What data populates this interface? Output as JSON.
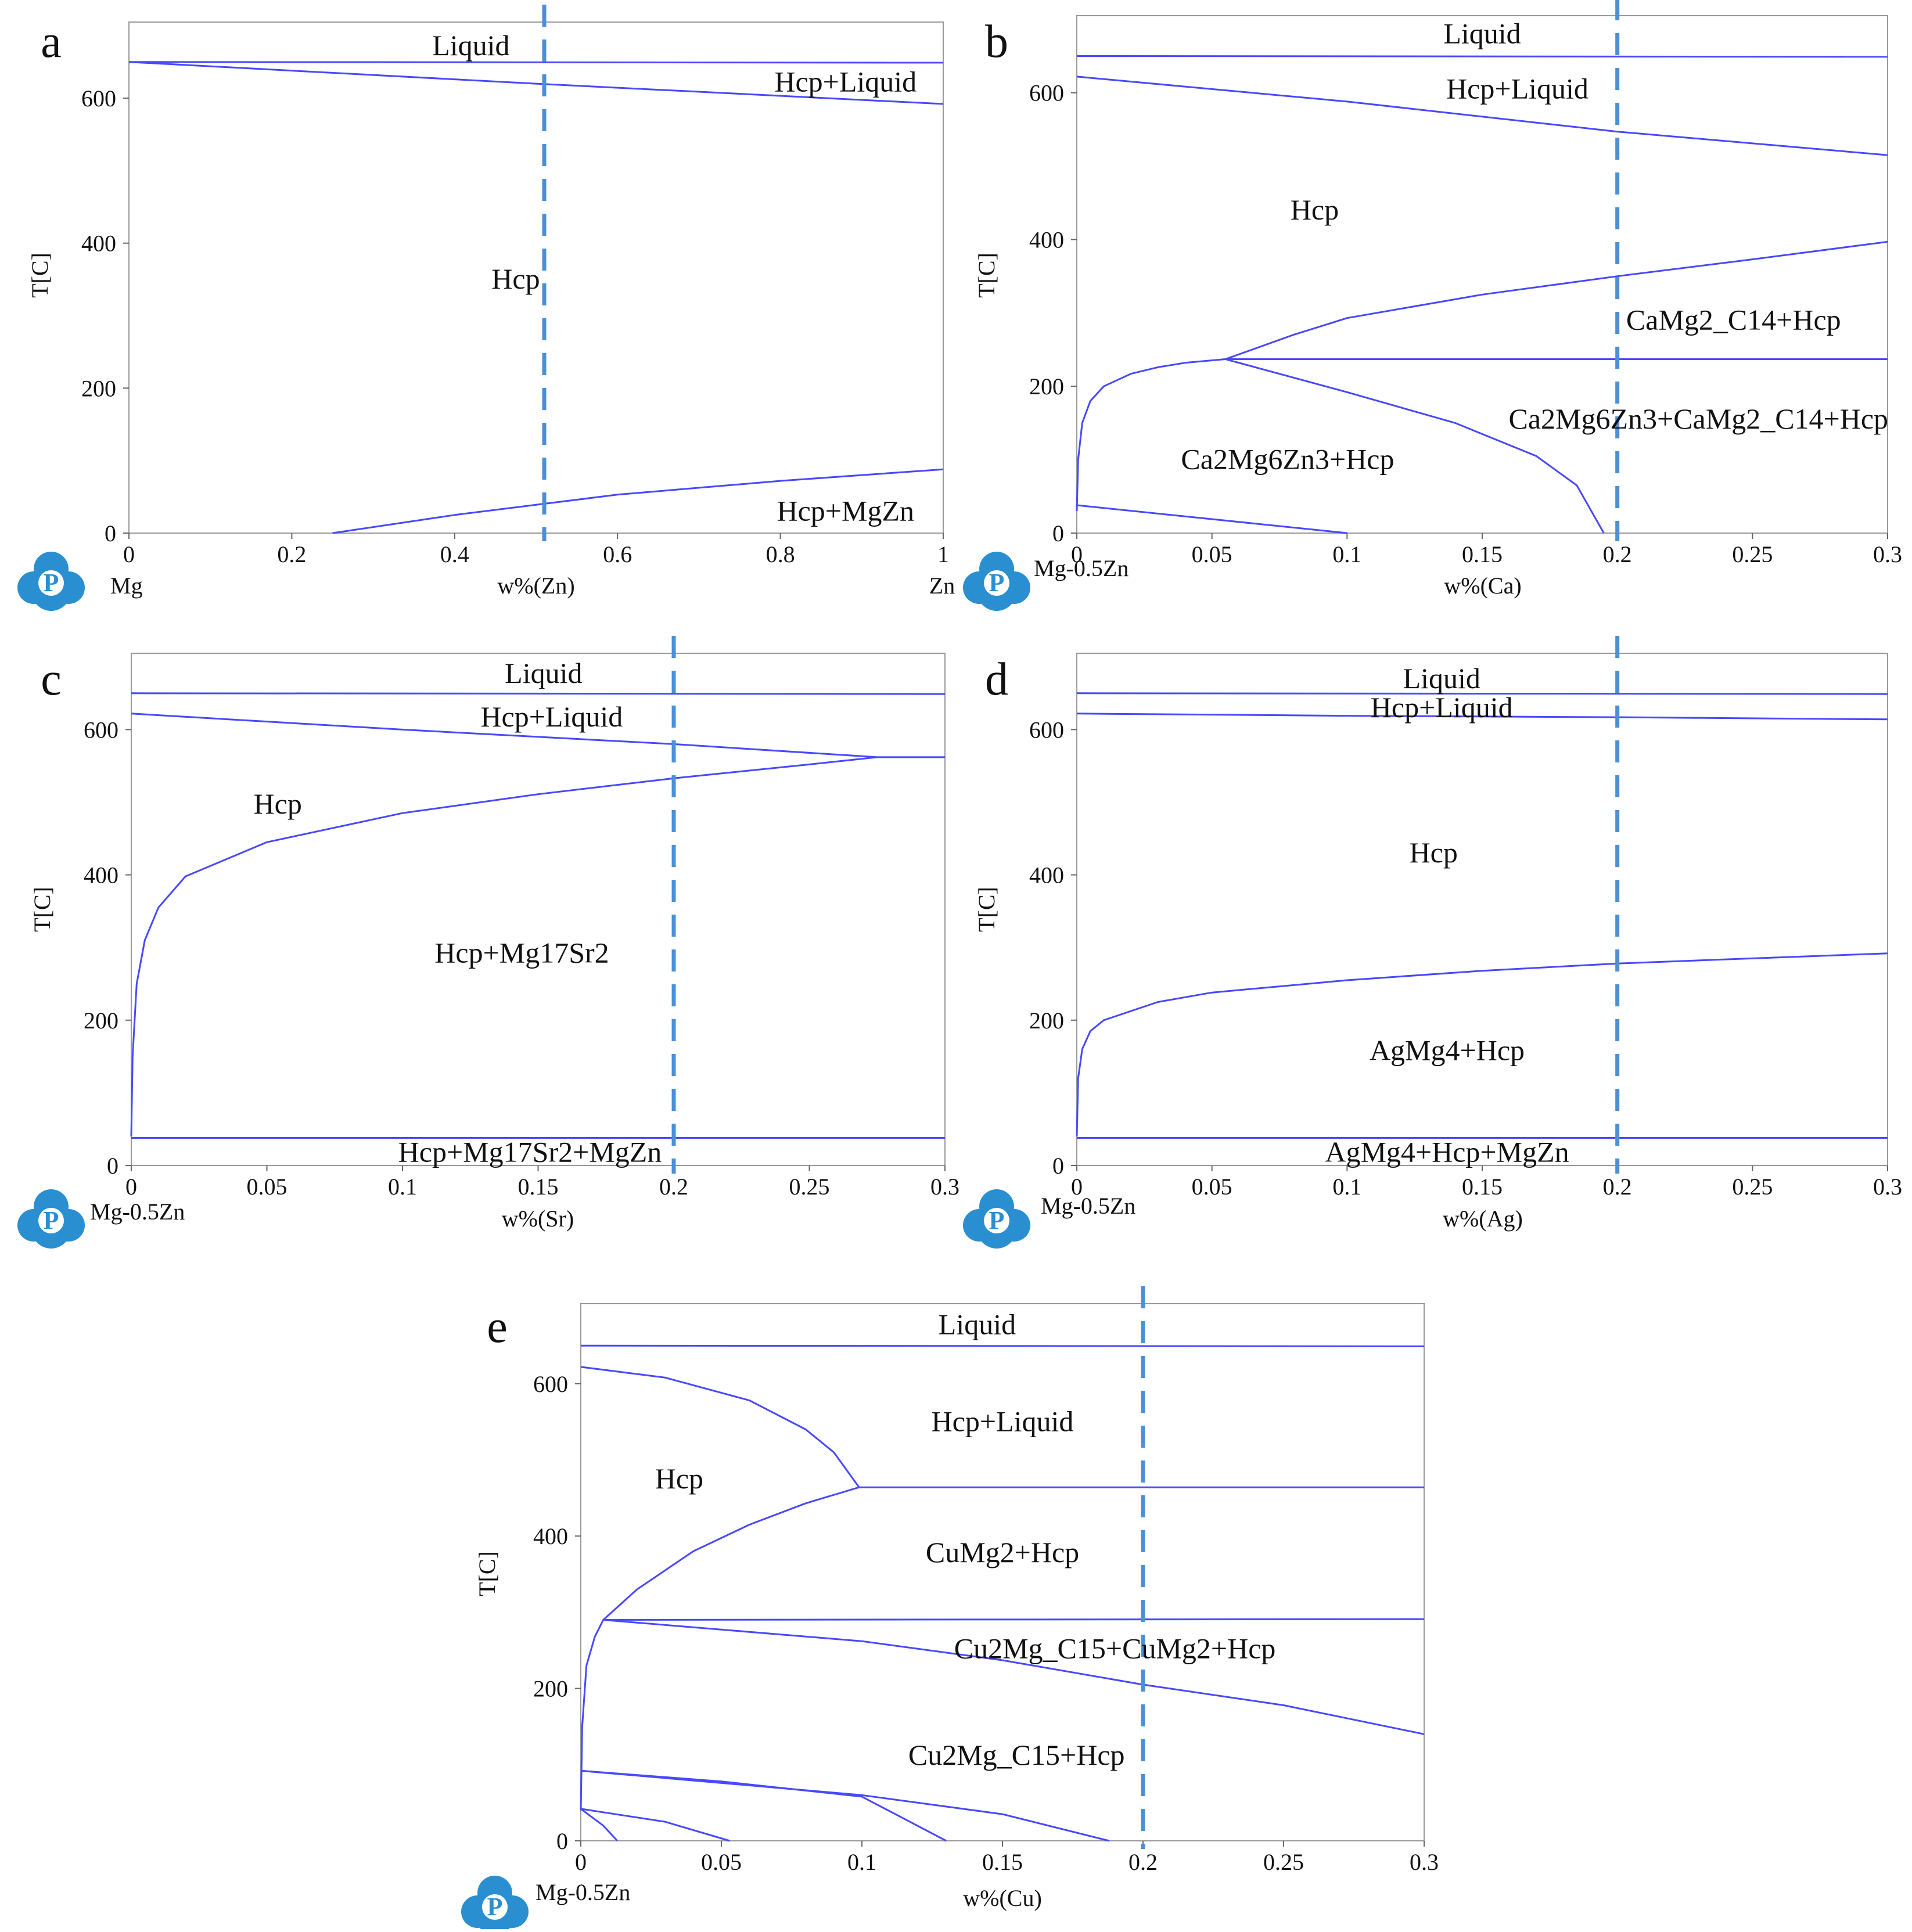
{
  "chart_data": [
    {
      "id": "a",
      "type": "line",
      "panel_label": "a",
      "xlabel": "w%(Zn)",
      "ylabel": "T[C]",
      "xlim": [
        0,
        1
      ],
      "ylim": [
        0,
        705
      ],
      "x_ticks": [
        "0",
        "0.2",
        "0.4",
        "0.6",
        "0.8",
        "1"
      ],
      "x_tick_values": [
        0,
        0.2,
        0.4,
        0.6,
        0.8,
        1
      ],
      "y_ticks": [
        "0",
        "200",
        "400",
        "600"
      ],
      "y_tick_values": [
        0,
        200,
        400,
        600
      ],
      "left_component": "Mg",
      "right_component": "Zn",
      "dashed_x": 0.51,
      "lines": [
        {
          "points": [
            [
              0,
              650
            ],
            [
              1,
              649
            ]
          ]
        },
        {
          "points": [
            [
              0,
              650
            ],
            [
              0.5,
              620
            ],
            [
              1,
              592
            ]
          ]
        },
        {
          "points": [
            [
              0.25,
              0
            ],
            [
              0.4,
              25
            ],
            [
              0.6,
              53
            ],
            [
              0.8,
              72
            ],
            [
              1,
              88
            ]
          ]
        }
      ],
      "labels": [
        {
          "text": "Liquid",
          "x": 0.42,
          "y": 672
        },
        {
          "text": "Hcp+Liquid",
          "x": 0.88,
          "y": 622
        },
        {
          "text": "Hcp",
          "x": 0.475,
          "y": 350
        },
        {
          "text": "Hcp+MgZn",
          "x": 0.88,
          "y": 30
        }
      ]
    },
    {
      "id": "b",
      "type": "line",
      "panel_label": "b",
      "xlabel": "w%(Ca)",
      "ylabel": "T[C]",
      "xlim": [
        0,
        0.3
      ],
      "ylim": [
        0,
        705
      ],
      "x_ticks": [
        "0",
        "0.05",
        "0.1",
        "0.15",
        "0.2",
        "0.25",
        "0.3"
      ],
      "x_tick_values": [
        0,
        0.05,
        0.1,
        0.15,
        0.2,
        0.25,
        0.3
      ],
      "y_ticks": [
        "0",
        "200",
        "400",
        "600"
      ],
      "y_tick_values": [
        0,
        200,
        400,
        600
      ],
      "left_component": "Mg-0.5Zn",
      "dashed_x": 0.2,
      "lines": [
        {
          "points": [
            [
              0,
              650
            ],
            [
              0.3,
              649
            ]
          ]
        },
        {
          "points": [
            [
              0,
              622
            ],
            [
              0.1,
              588
            ],
            [
              0.2,
              547
            ],
            [
              0.3,
              515
            ]
          ]
        },
        {
          "points": [
            [
              0,
              30
            ],
            [
              0.0005,
              100
            ],
            [
              0.002,
              150
            ],
            [
              0.005,
              180
            ],
            [
              0.01,
              200
            ],
            [
              0.02,
              217
            ],
            [
              0.03,
              226
            ],
            [
              0.04,
              232
            ],
            [
              0.055,
              237
            ],
            [
              0.08,
              270
            ],
            [
              0.1,
              293
            ],
            [
              0.15,
              325
            ],
            [
              0.2,
              350
            ],
            [
              0.25,
              373
            ],
            [
              0.3,
              397
            ]
          ]
        },
        {
          "points": [
            [
              0.055,
              237
            ],
            [
              0.3,
              237
            ]
          ]
        },
        {
          "points": [
            [
              0.055,
              237
            ],
            [
              0.1,
              192
            ],
            [
              0.14,
              150
            ],
            [
              0.17,
              105
            ],
            [
              0.185,
              65
            ],
            [
              0.195,
              0
            ]
          ]
        },
        {
          "points": [
            [
              0,
              38
            ],
            [
              0.1,
              0
            ]
          ]
        }
      ],
      "labels": [
        {
          "text": "Liquid",
          "x": 0.15,
          "y": 680
        },
        {
          "text": "Hcp+Liquid",
          "x": 0.163,
          "y": 605
        },
        {
          "text": "Hcp",
          "x": 0.088,
          "y": 440
        },
        {
          "text": "CaMg2_C14+Hcp",
          "x": 0.243,
          "y": 290
        },
        {
          "text": "Ca2Mg6Zn3+CaMg2_C14+Hcp",
          "x": 0.23,
          "y": 155
        },
        {
          "text": "Ca2Mg6Zn3+Hcp",
          "x": 0.078,
          "y": 100
        }
      ]
    },
    {
      "id": "c",
      "type": "line",
      "panel_label": "c",
      "xlabel": "w%(Sr)",
      "ylabel": "T[C]",
      "xlim": [
        0,
        0.3
      ],
      "ylim": [
        0,
        705
      ],
      "x_ticks": [
        "0",
        "0.05",
        "0.1",
        "0.15",
        "0.2",
        "0.25",
        "0.3"
      ],
      "x_tick_values": [
        0,
        0.05,
        0.1,
        0.15,
        0.2,
        0.25,
        0.3
      ],
      "y_ticks": [
        "0",
        "200",
        "400",
        "600"
      ],
      "y_tick_values": [
        0,
        200,
        400,
        600
      ],
      "left_component": "Mg-0.5Zn",
      "dashed_x": 0.2,
      "lines": [
        {
          "points": [
            [
              0,
              650
            ],
            [
              0.3,
              649
            ]
          ]
        },
        {
          "points": [
            [
              0,
              622
            ],
            [
              0.1,
              600
            ],
            [
              0.2,
              580
            ],
            [
              0.275,
              562
            ]
          ]
        },
        {
          "points": [
            [
              0.275,
              562
            ],
            [
              0.3,
              562
            ]
          ]
        },
        {
          "points": [
            [
              0,
              40
            ],
            [
              0.0005,
              150
            ],
            [
              0.002,
              250
            ],
            [
              0.005,
              310
            ],
            [
              0.01,
              355
            ],
            [
              0.02,
              398
            ],
            [
              0.05,
              445
            ],
            [
              0.1,
              485
            ],
            [
              0.15,
              511
            ],
            [
              0.2,
              533
            ],
            [
              0.25,
              552
            ],
            [
              0.275,
              562
            ]
          ]
        },
        {
          "points": [
            [
              0,
              38
            ],
            [
              0.3,
              38
            ]
          ]
        }
      ],
      "labels": [
        {
          "text": "Liquid",
          "x": 0.152,
          "y": 677
        },
        {
          "text": "Hcp+Liquid",
          "x": 0.155,
          "y": 617
        },
        {
          "text": "Hcp",
          "x": 0.054,
          "y": 497
        },
        {
          "text": "Hcp+Mg17Sr2",
          "x": 0.144,
          "y": 292
        },
        {
          "text": "Hcp+Mg17Sr2+MgZn",
          "x": 0.147,
          "y": 18
        }
      ]
    },
    {
      "id": "d",
      "type": "line",
      "panel_label": "d",
      "xlabel": "w%(Ag)",
      "ylabel": "T[C]",
      "xlim": [
        0,
        0.3
      ],
      "ylim": [
        0,
        705
      ],
      "x_ticks": [
        "0",
        "0.05",
        "0.1",
        "0.15",
        "0.2",
        "0.25",
        "0.3"
      ],
      "x_tick_values": [
        0,
        0.05,
        0.1,
        0.15,
        0.2,
        0.25,
        0.3
      ],
      "y_ticks": [
        "0",
        "200",
        "400",
        "600"
      ],
      "y_tick_values": [
        0,
        200,
        400,
        600
      ],
      "left_component": "Mg-0.5Zn",
      "dashed_x": 0.2,
      "lines": [
        {
          "points": [
            [
              0,
              650
            ],
            [
              0.3,
              649
            ]
          ]
        },
        {
          "points": [
            [
              0,
              622
            ],
            [
              0.1,
              619
            ],
            [
              0.2,
              617
            ],
            [
              0.3,
              614
            ]
          ]
        },
        {
          "points": [
            [
              0,
              40
            ],
            [
              0.0005,
              120
            ],
            [
              0.002,
              160
            ],
            [
              0.005,
              185
            ],
            [
              0.01,
              200
            ],
            [
              0.03,
              225
            ],
            [
              0.05,
              238
            ],
            [
              0.1,
              255
            ],
            [
              0.15,
              268
            ],
            [
              0.2,
              278
            ],
            [
              0.25,
              285
            ],
            [
              0.3,
              292
            ]
          ]
        },
        {
          "points": [
            [
              0,
              38
            ],
            [
              0.3,
              38
            ]
          ]
        }
      ],
      "labels": [
        {
          "text": "Liquid",
          "x": 0.135,
          "y": 670
        },
        {
          "text": "Hcp+Liquid",
          "x": 0.135,
          "y": 630
        },
        {
          "text": "Hcp",
          "x": 0.132,
          "y": 430
        },
        {
          "text": "AgMg4+Hcp",
          "x": 0.137,
          "y": 158
        },
        {
          "text": "AgMg4+Hcp+MgZn",
          "x": 0.137,
          "y": 18
        }
      ]
    },
    {
      "id": "e",
      "type": "line",
      "panel_label": "e",
      "xlabel": "w%(Cu)",
      "ylabel": "T[C]",
      "xlim": [
        0,
        0.3
      ],
      "ylim": [
        0,
        705
      ],
      "x_ticks": [
        "0",
        "0.05",
        "0.1",
        "0.15",
        "0.2",
        "0.25",
        "0.3"
      ],
      "x_tick_values": [
        0,
        0.05,
        0.1,
        0.15,
        0.2,
        0.25,
        0.3
      ],
      "y_ticks": [
        "0",
        "200",
        "400",
        "600"
      ],
      "y_tick_values": [
        0,
        200,
        400,
        600
      ],
      "left_component": "Mg-0.5Zn",
      "dashed_x": 0.2,
      "lines": [
        {
          "points": [
            [
              0,
              650
            ],
            [
              0.3,
              649
            ]
          ]
        },
        {
          "points": [
            [
              0,
              622
            ],
            [
              0.03,
              608
            ],
            [
              0.06,
              578
            ],
            [
              0.08,
              540
            ],
            [
              0.09,
              510
            ],
            [
              0.099,
              464
            ]
          ]
        },
        {
          "points": [
            [
              0.099,
              464
            ],
            [
              0.3,
              464
            ]
          ]
        },
        {
          "points": [
            [
              0,
              40
            ],
            [
              0.0005,
              150
            ],
            [
              0.002,
              230
            ],
            [
              0.005,
              268
            ],
            [
              0.008,
              290
            ],
            [
              0.02,
              330
            ],
            [
              0.04,
              380
            ],
            [
              0.06,
              415
            ],
            [
              0.08,
              443
            ],
            [
              0.099,
              464
            ]
          ]
        },
        {
          "points": [
            [
              0.008,
              290
            ],
            [
              0.3,
              291
            ]
          ]
        },
        {
          "points": [
            [
              0.008,
              290
            ],
            [
              0.1,
              262
            ],
            [
              0.15,
              237
            ],
            [
              0.2,
              205
            ],
            [
              0.25,
              178
            ],
            [
              0.3,
              140
            ]
          ]
        },
        {
          "points": [
            [
              0,
              92
            ],
            [
              0.05,
              78
            ],
            [
              0.1,
              58
            ],
            [
              0.13,
              0
            ]
          ]
        },
        {
          "points": [
            [
              0,
              92
            ],
            [
              0.1,
              60
            ],
            [
              0.15,
              35
            ],
            [
              0.188,
              0
            ]
          ]
        },
        {
          "points": [
            [
              0,
              42
            ],
            [
              0.03,
              25
            ],
            [
              0.053,
              0
            ]
          ]
        },
        {
          "points": [
            [
              0,
              42
            ],
            [
              0.008,
              20
            ],
            [
              0.013,
              0
            ]
          ]
        }
      ],
      "labels": [
        {
          "text": "Liquid",
          "x": 0.141,
          "y": 677
        },
        {
          "text": "Hcp+Liquid",
          "x": 0.15,
          "y": 550
        },
        {
          "text": "Hcp",
          "x": 0.035,
          "y": 475
        },
        {
          "text": "CuMg2+Hcp",
          "x": 0.15,
          "y": 378
        },
        {
          "text": "Cu2Mg_C15+CuMg2+Hcp",
          "x": 0.19,
          "y": 252
        },
        {
          "text": "Cu2Mg_C15+Hcp",
          "x": 0.155,
          "y": 112
        }
      ]
    }
  ],
  "colors": {
    "phase_line": "#4848ff",
    "dashed_line": "#4a90d9",
    "frame": "#999999",
    "logo": "#2a8fd0",
    "text": "#111111"
  },
  "logo_letter": "P"
}
